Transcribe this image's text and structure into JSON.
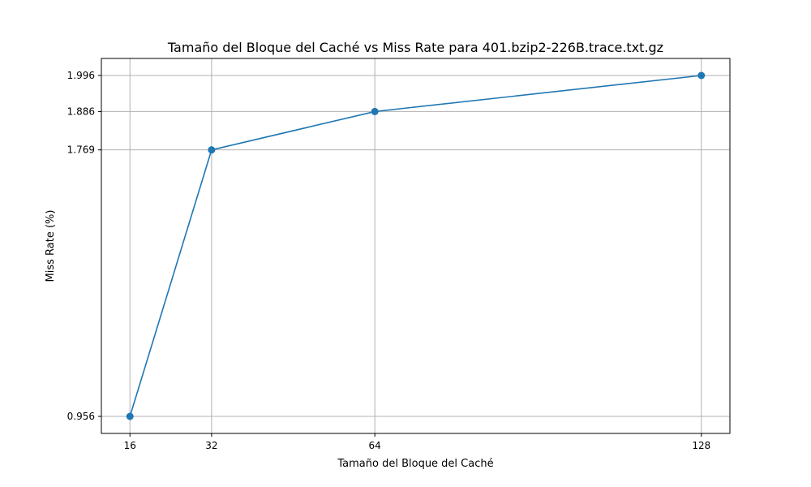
{
  "chart_data": {
    "type": "line",
    "title": "Tamaño del Bloque del Caché vs Miss Rate para 401.bzip2-226B.trace.txt.gz",
    "xlabel": "Tamaño del Bloque del Caché",
    "ylabel": "Miss Rate (%)",
    "x": [
      16,
      32,
      64,
      128
    ],
    "x_tick_labels": [
      "16",
      "32",
      "64",
      "128"
    ],
    "y_tick_labels": [
      "0.956",
      "1.769",
      "1.886",
      "1.996"
    ],
    "xlim": [
      10.4,
      133.6
    ],
    "ylim": [
      0.904,
      2.048
    ],
    "grid": true,
    "series": [
      {
        "values": [
          0.956,
          1.769,
          1.886,
          1.996
        ],
        "color": "#1f77b4",
        "marker": "circle"
      }
    ]
  }
}
